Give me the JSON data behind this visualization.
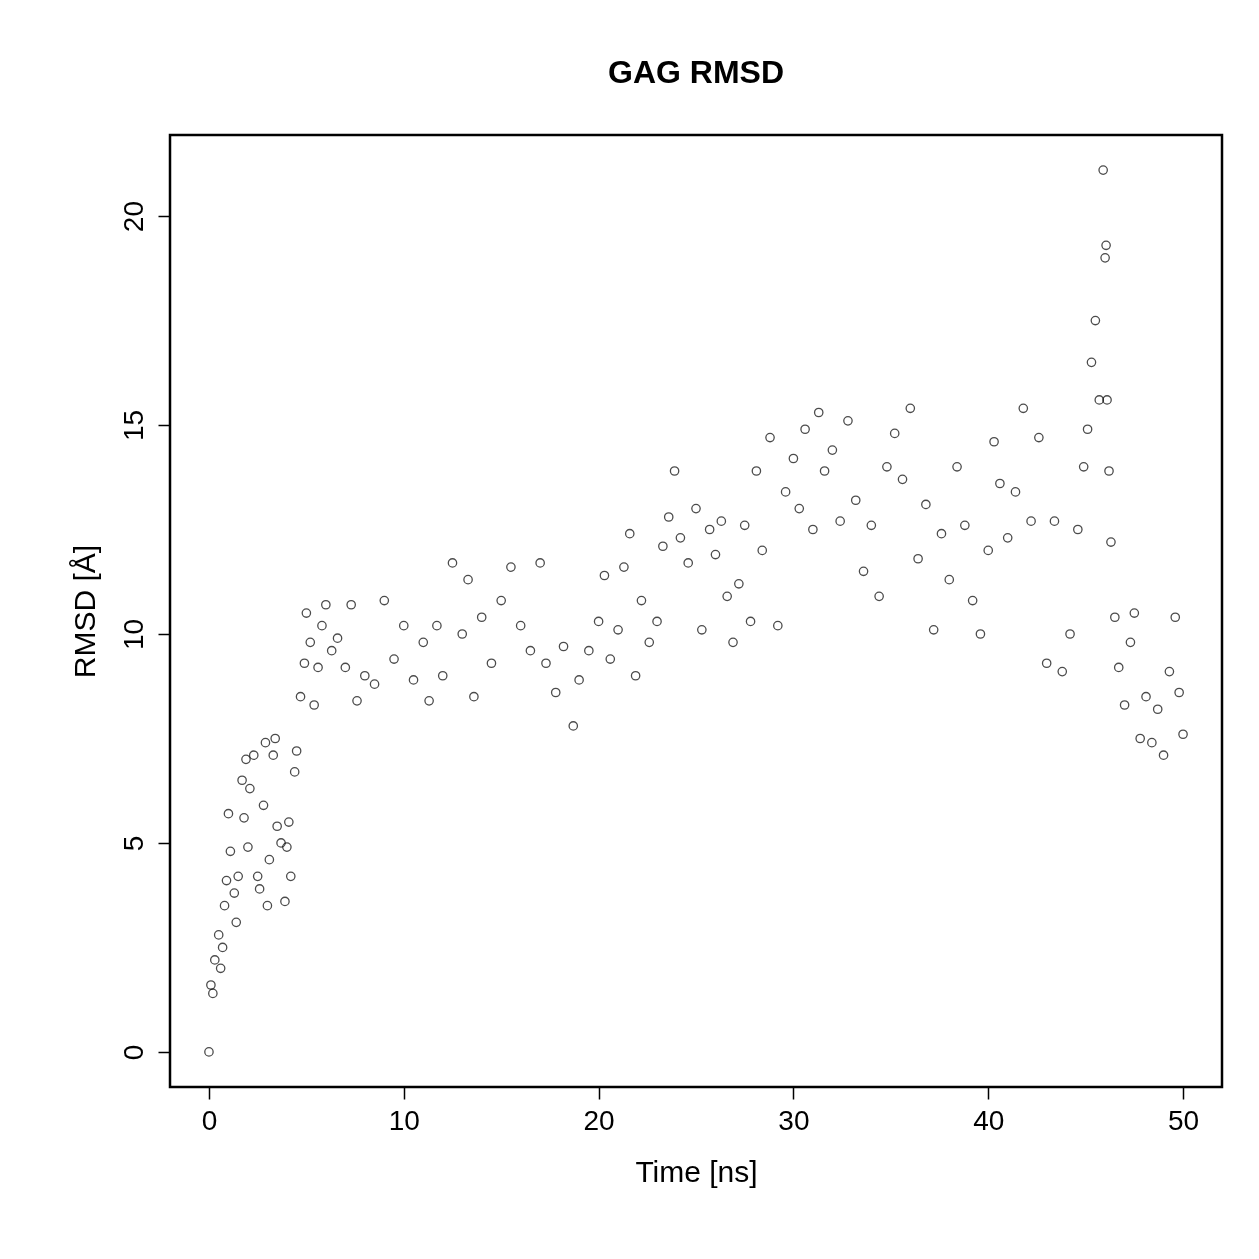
{
  "chart_data": {
    "type": "scatter",
    "title": "GAG RMSD",
    "xlabel": "Time [ns]",
    "ylabel": "RMSD [Å]",
    "xlim": [
      -2,
      52
    ],
    "ylim": [
      -0.84,
      21.94
    ],
    "xticks": [
      0,
      10,
      20,
      30,
      40,
      50
    ],
    "yticks": [
      0,
      5,
      10,
      15,
      20
    ],
    "marker": "circle",
    "x": [
      0,
      0.1,
      0.2,
      0.3,
      0.5,
      0.6,
      0.7,
      0.8,
      0.9,
      1.0,
      1.1,
      1.3,
      1.4,
      1.5,
      1.7,
      1.8,
      1.9,
      2.0,
      2.1,
      2.3,
      2.5,
      2.6,
      2.8,
      2.9,
      3.0,
      3.1,
      3.3,
      3.4,
      3.5,
      3.7,
      3.9,
      4.0,
      4.1,
      4.2,
      4.4,
      4.5,
      4.7,
      4.9,
      5.0,
      5.2,
      5.4,
      5.6,
      5.8,
      6.0,
      6.3,
      6.6,
      7.0,
      7.3,
      7.6,
      8.0,
      8.5,
      9.0,
      9.5,
      10.0,
      10.5,
      11.0,
      11.3,
      11.7,
      12.0,
      12.5,
      13.0,
      13.3,
      13.6,
      14.0,
      14.5,
      15.0,
      15.5,
      16.0,
      16.5,
      17.0,
      17.3,
      17.8,
      18.2,
      18.7,
      19.0,
      19.5,
      20.0,
      20.3,
      20.6,
      21.0,
      21.3,
      21.6,
      21.9,
      22.2,
      22.6,
      23.0,
      23.3,
      23.6,
      23.9,
      24.2,
      24.6,
      25.0,
      25.3,
      25.7,
      26.0,
      26.3,
      26.6,
      26.9,
      27.2,
      27.5,
      27.8,
      28.1,
      28.4,
      28.8,
      29.2,
      29.6,
      30.0,
      30.3,
      30.6,
      31.0,
      31.3,
      31.6,
      32.0,
      32.4,
      32.8,
      33.2,
      33.6,
      34.0,
      34.4,
      34.8,
      35.2,
      35.6,
      36.0,
      36.4,
      36.8,
      37.2,
      37.6,
      38.0,
      38.4,
      38.8,
      39.2,
      39.6,
      40.0,
      40.3,
      40.6,
      41.0,
      41.4,
      41.8,
      42.2,
      42.6,
      43.0,
      43.4,
      43.8,
      44.2,
      44.6,
      44.9,
      45.1,
      45.3,
      45.5,
      45.7,
      45.9,
      46.0,
      46.05,
      46.1,
      46.2,
      46.3,
      46.5,
      46.7,
      47.0,
      47.3,
      47.5,
      47.8,
      48.1,
      48.4,
      48.7,
      49.0,
      49.3,
      49.6,
      49.8,
      50.0
    ],
    "series": [
      {
        "color": "#000000",
        "values": [
          0,
          1.6,
          1.4,
          2.2,
          2.8,
          2.0,
          2.5,
          3.5,
          4.1,
          5.7,
          4.8,
          3.8,
          3.1,
          4.2,
          6.5,
          5.6,
          7.0,
          4.9,
          6.3,
          7.1,
          4.2,
          3.9,
          5.9,
          7.4,
          3.5,
          4.6,
          7.1,
          7.5,
          5.4,
          5.0,
          3.6,
          4.9,
          5.5,
          4.2,
          6.7,
          7.2,
          8.5,
          9.3,
          10.5,
          9.8,
          8.3,
          9.2,
          10.2,
          10.7,
          9.6,
          9.9,
          9.2,
          10.7,
          8.4,
          9.0,
          8.8,
          10.8,
          9.4,
          10.2,
          8.9,
          9.8,
          8.4,
          10.2,
          9.0,
          11.7,
          10.0,
          11.3,
          8.5,
          10.4,
          9.3,
          10.8,
          11.6,
          10.2,
          9.6,
          11.7,
          9.3,
          8.6,
          9.7,
          7.8,
          8.9,
          9.6,
          10.3,
          11.4,
          9.4,
          10.1,
          11.6,
          12.4,
          9.0,
          10.8,
          9.8,
          10.3,
          12.1,
          12.8,
          13.9,
          12.3,
          11.7,
          13.0,
          10.1,
          12.5,
          11.9,
          12.7,
          10.9,
          9.8,
          11.2,
          12.6,
          10.3,
          13.9,
          12.0,
          14.7,
          10.2,
          13.4,
          14.2,
          13.0,
          14.9,
          12.5,
          15.3,
          13.9,
          14.4,
          12.7,
          15.1,
          13.2,
          11.5,
          12.6,
          10.9,
          14.0,
          14.8,
          13.7,
          15.4,
          11.8,
          13.1,
          10.1,
          12.4,
          11.3,
          14.0,
          12.6,
          10.8,
          10.0,
          12.0,
          14.6,
          13.6,
          12.3,
          13.4,
          15.4,
          12.7,
          14.7,
          9.3,
          12.7,
          9.1,
          10.0,
          12.5,
          14.0,
          14.9,
          16.5,
          17.5,
          15.6,
          21.1,
          19.0,
          19.3,
          15.6,
          13.9,
          12.2,
          10.4,
          9.2,
          8.3,
          9.8,
          10.5,
          7.5,
          8.5,
          7.4,
          8.2,
          7.1,
          9.1,
          10.4,
          8.6,
          7.6
        ]
      }
    ]
  }
}
